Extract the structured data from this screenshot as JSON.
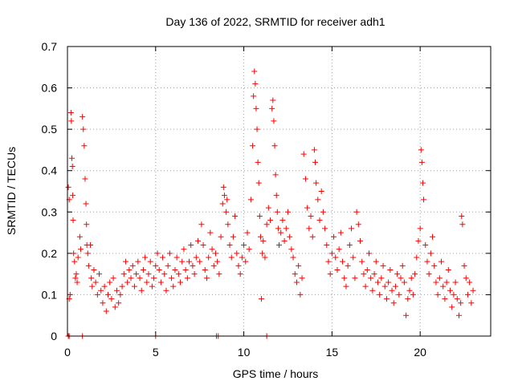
{
  "chart_data": {
    "type": "scatter",
    "title": "Day 136 of 2022, SRMTID for receiver adh1",
    "xlabel": "GPS time / hours",
    "ylabel": "SRMTID / TECUs",
    "xlim": [
      0,
      24
    ],
    "ylim": [
      0,
      0.7
    ],
    "x_ticks": [
      0,
      5,
      10,
      15,
      20
    ],
    "y_ticks": [
      0,
      0.1,
      0.2,
      0.3,
      0.4,
      0.5,
      0.6,
      0.7
    ],
    "x_tick_labels": [
      "0",
      "5",
      "10",
      "15",
      "20"
    ],
    "y_tick_labels": [
      "0",
      "0.1",
      "0.2",
      "0.3",
      "0.4",
      "0.5",
      "0.6",
      "0.7"
    ],
    "grid": true,
    "marker": "+",
    "color": "#ff0000",
    "series": [
      {
        "name": "adh1",
        "points": [
          [
            0.05,
            0.36
          ],
          [
            0.1,
            0.33
          ],
          [
            0.1,
            0.09
          ],
          [
            0.15,
            0.1
          ],
          [
            0.2,
            0.54
          ],
          [
            0.22,
            0.52
          ],
          [
            0.25,
            0.43
          ],
          [
            0.28,
            0.41
          ],
          [
            0.3,
            0.34
          ],
          [
            0.32,
            0.28
          ],
          [
            0.35,
            0.2
          ],
          [
            0.4,
            0.18
          ],
          [
            0.45,
            0.14
          ],
          [
            0.5,
            0.15
          ],
          [
            0.55,
            0.13
          ],
          [
            0.6,
            0.19
          ],
          [
            0.7,
            0.24
          ],
          [
            0.75,
            0.21
          ],
          [
            0.85,
            0.53
          ],
          [
            0.9,
            0.5
          ],
          [
            0.95,
            0.46
          ],
          [
            1.0,
            0.38
          ],
          [
            1.05,
            0.32
          ],
          [
            1.08,
            0.27
          ],
          [
            1.1,
            0.22
          ],
          [
            1.15,
            0.2
          ],
          [
            1.2,
            0.17
          ],
          [
            1.3,
            0.22
          ],
          [
            1.35,
            0.14
          ],
          [
            1.4,
            0.12
          ],
          [
            1.5,
            0.16
          ],
          [
            1.6,
            0.13
          ],
          [
            1.7,
            0.1
          ],
          [
            1.8,
            0.15
          ],
          [
            1.9,
            0.11
          ],
          [
            2.0,
            0.08
          ],
          [
            2.1,
            0.12
          ],
          [
            2.2,
            0.06
          ],
          [
            2.3,
            0.1
          ],
          [
            2.4,
            0.13
          ],
          [
            2.5,
            0.09
          ],
          [
            2.6,
            0.14
          ],
          [
            2.7,
            0.07
          ],
          [
            2.8,
            0.11
          ],
          [
            2.9,
            0.08
          ],
          [
            3.0,
            0.1
          ],
          [
            3.1,
            0.12
          ],
          [
            3.2,
            0.15
          ],
          [
            3.3,
            0.18
          ],
          [
            3.4,
            0.13
          ],
          [
            3.5,
            0.16
          ],
          [
            3.6,
            0.14
          ],
          [
            3.7,
            0.17
          ],
          [
            3.8,
            0.12
          ],
          [
            3.9,
            0.15
          ],
          [
            4.0,
            0.18
          ],
          [
            4.1,
            0.14
          ],
          [
            4.2,
            0.11
          ],
          [
            4.3,
            0.16
          ],
          [
            4.4,
            0.19
          ],
          [
            4.5,
            0.13
          ],
          [
            4.6,
            0.15
          ],
          [
            4.7,
            0.18
          ],
          [
            4.8,
            0.12
          ],
          [
            4.9,
            0.14
          ],
          [
            5.0,
            0.17
          ],
          [
            5.1,
            0.2
          ],
          [
            5.2,
            0.16
          ],
          [
            5.3,
            0.13
          ],
          [
            5.4,
            0.19
          ],
          [
            5.5,
            0.15
          ],
          [
            5.6,
            0.11
          ],
          [
            5.7,
            0.17
          ],
          [
            5.8,
            0.2
          ],
          [
            5.9,
            0.14
          ],
          [
            6.0,
            0.12
          ],
          [
            6.1,
            0.16
          ],
          [
            6.2,
            0.19
          ],
          [
            6.3,
            0.15
          ],
          [
            6.4,
            0.13
          ],
          [
            6.5,
            0.18
          ],
          [
            6.6,
            0.21
          ],
          [
            6.7,
            0.16
          ],
          [
            6.8,
            0.14
          ],
          [
            6.9,
            0.18
          ],
          [
            7.0,
            0.22
          ],
          [
            7.1,
            0.17
          ],
          [
            7.2,
            0.15
          ],
          [
            7.3,
            0.19
          ],
          [
            7.4,
            0.23
          ],
          [
            7.5,
            0.18
          ],
          [
            7.6,
            0.27
          ],
          [
            7.7,
            0.22
          ],
          [
            7.8,
            0.16
          ],
          [
            7.9,
            0.14
          ],
          [
            8.0,
            0.19
          ],
          [
            8.1,
            0.25
          ],
          [
            8.2,
            0.21
          ],
          [
            8.3,
            0.17
          ],
          [
            8.4,
            0.2
          ],
          [
            8.5,
            0.18
          ],
          [
            8.6,
            0.15
          ],
          [
            8.7,
            0.24
          ],
          [
            8.8,
            0.32
          ],
          [
            8.85,
            0.36
          ],
          [
            8.9,
            0.34
          ],
          [
            9.0,
            0.3
          ],
          [
            9.05,
            0.33
          ],
          [
            9.1,
            0.27
          ],
          [
            9.2,
            0.22
          ],
          [
            9.3,
            0.19
          ],
          [
            9.4,
            0.24
          ],
          [
            9.5,
            0.29
          ],
          [
            9.6,
            0.2
          ],
          [
            9.7,
            0.17
          ],
          [
            9.8,
            0.15
          ],
          [
            9.9,
            0.19
          ],
          [
            10.0,
            0.22
          ],
          [
            10.1,
            0.18
          ],
          [
            10.2,
            0.25
          ],
          [
            10.3,
            0.21
          ],
          [
            10.4,
            0.33
          ],
          [
            10.5,
            0.46
          ],
          [
            10.55,
            0.58
          ],
          [
            10.6,
            0.64
          ],
          [
            10.65,
            0.61
          ],
          [
            10.7,
            0.55
          ],
          [
            10.75,
            0.5
          ],
          [
            10.8,
            0.42
          ],
          [
            10.85,
            0.37
          ],
          [
            10.9,
            0.29
          ],
          [
            10.95,
            0.24
          ],
          [
            11.0,
            0.09
          ],
          [
            11.05,
            0.2
          ],
          [
            11.1,
            0.23
          ],
          [
            11.2,
            0.19
          ],
          [
            11.3,
            0.27
          ],
          [
            11.4,
            0.31
          ],
          [
            11.5,
            0.28
          ],
          [
            11.6,
            0.55
          ],
          [
            11.65,
            0.57
          ],
          [
            11.7,
            0.52
          ],
          [
            11.75,
            0.46
          ],
          [
            11.8,
            0.39
          ],
          [
            11.85,
            0.34
          ],
          [
            11.9,
            0.3
          ],
          [
            11.95,
            0.26
          ],
          [
            12.0,
            0.22
          ],
          [
            12.1,
            0.25
          ],
          [
            12.2,
            0.28
          ],
          [
            12.3,
            0.23
          ],
          [
            12.4,
            0.26
          ],
          [
            12.5,
            0.3
          ],
          [
            12.6,
            0.24
          ],
          [
            12.7,
            0.21
          ],
          [
            12.8,
            0.19
          ],
          [
            12.9,
            0.15
          ],
          [
            13.0,
            0.13
          ],
          [
            13.1,
            0.17
          ],
          [
            13.2,
            0.1
          ],
          [
            13.3,
            0.14
          ],
          [
            13.4,
            0.44
          ],
          [
            13.5,
            0.38
          ],
          [
            13.6,
            0.31
          ],
          [
            13.7,
            0.26
          ],
          [
            13.8,
            0.29
          ],
          [
            13.9,
            0.24
          ],
          [
            14.0,
            0.45
          ],
          [
            14.05,
            0.42
          ],
          [
            14.1,
            0.37
          ],
          [
            14.2,
            0.33
          ],
          [
            14.3,
            0.28
          ],
          [
            14.4,
            0.35
          ],
          [
            14.5,
            0.3
          ],
          [
            14.6,
            0.26
          ],
          [
            14.7,
            0.22
          ],
          [
            14.8,
            0.18
          ],
          [
            14.9,
            0.15
          ],
          [
            15.0,
            0.2
          ],
          [
            15.1,
            0.24
          ],
          [
            15.2,
            0.19
          ],
          [
            15.3,
            0.16
          ],
          [
            15.4,
            0.21
          ],
          [
            15.5,
            0.25
          ],
          [
            15.6,
            0.18
          ],
          [
            15.7,
            0.14
          ],
          [
            15.8,
            0.12
          ],
          [
            15.9,
            0.17
          ],
          [
            16.0,
            0.22
          ],
          [
            16.1,
            0.26
          ],
          [
            16.2,
            0.19
          ],
          [
            16.3,
            0.14
          ],
          [
            16.4,
            0.3
          ],
          [
            16.5,
            0.27
          ],
          [
            16.6,
            0.23
          ],
          [
            16.7,
            0.18
          ],
          [
            16.8,
            0.15
          ],
          [
            16.9,
            0.12
          ],
          [
            17.0,
            0.16
          ],
          [
            17.1,
            0.2
          ],
          [
            17.2,
            0.14
          ],
          [
            17.3,
            0.11
          ],
          [
            17.4,
            0.15
          ],
          [
            17.5,
            0.18
          ],
          [
            17.6,
            0.13
          ],
          [
            17.7,
            0.1
          ],
          [
            17.8,
            0.14
          ],
          [
            17.9,
            0.17
          ],
          [
            18.0,
            0.12
          ],
          [
            18.1,
            0.09
          ],
          [
            18.2,
            0.13
          ],
          [
            18.3,
            0.16
          ],
          [
            18.4,
            0.11
          ],
          [
            18.5,
            0.08
          ],
          [
            18.6,
            0.12
          ],
          [
            18.7,
            0.15
          ],
          [
            18.8,
            0.1
          ],
          [
            18.9,
            0.14
          ],
          [
            19.0,
            0.17
          ],
          [
            19.1,
            0.13
          ],
          [
            19.2,
            0.05
          ],
          [
            19.3,
            0.09
          ],
          [
            19.4,
            0.11
          ],
          [
            19.5,
            0.14
          ],
          [
            19.6,
            0.1
          ],
          [
            19.7,
            0.15
          ],
          [
            19.8,
            0.19
          ],
          [
            19.9,
            0.23
          ],
          [
            20.0,
            0.26
          ],
          [
            20.05,
            0.45
          ],
          [
            20.1,
            0.42
          ],
          [
            20.15,
            0.37
          ],
          [
            20.2,
            0.33
          ],
          [
            20.3,
            0.22
          ],
          [
            20.4,
            0.18
          ],
          [
            20.5,
            0.15
          ],
          [
            20.6,
            0.2
          ],
          [
            20.7,
            0.24
          ],
          [
            20.8,
            0.17
          ],
          [
            20.9,
            0.13
          ],
          [
            21.0,
            0.1
          ],
          [
            21.1,
            0.14
          ],
          [
            21.2,
            0.18
          ],
          [
            21.3,
            0.12
          ],
          [
            21.4,
            0.09
          ],
          [
            21.5,
            0.13
          ],
          [
            21.6,
            0.16
          ],
          [
            21.7,
            0.11
          ],
          [
            21.8,
            0.07
          ],
          [
            21.9,
            0.1
          ],
          [
            22.0,
            0.13
          ],
          [
            22.1,
            0.09
          ],
          [
            22.2,
            0.05
          ],
          [
            22.3,
            0.08
          ],
          [
            22.35,
            0.29
          ],
          [
            22.4,
            0.27
          ],
          [
            22.5,
            0.17
          ],
          [
            22.6,
            0.14
          ],
          [
            22.7,
            0.1
          ],
          [
            22.8,
            0.13
          ],
          [
            22.9,
            0.08
          ],
          [
            23.0,
            0.11
          ],
          [
            0.05,
            0.0
          ],
          [
            0.1,
            0.0
          ],
          [
            0.85,
            0.0
          ],
          [
            5.0,
            0.0
          ],
          [
            8.45,
            0.0
          ],
          [
            8.55,
            0.0
          ],
          [
            11.3,
            0.0
          ]
        ]
      }
    ]
  }
}
